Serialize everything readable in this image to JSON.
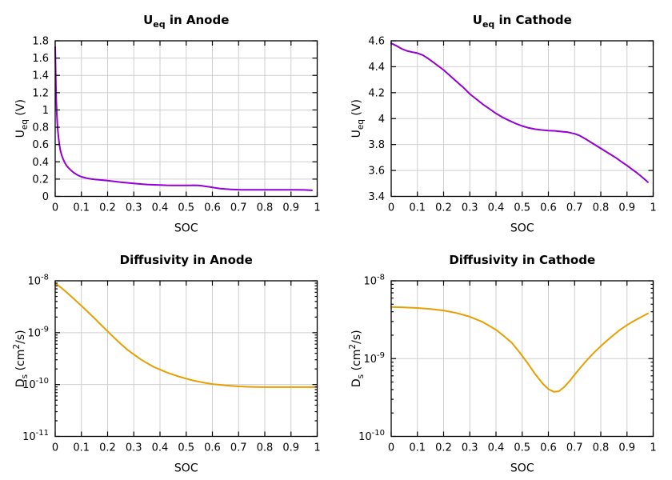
{
  "style": {
    "background": "#ffffff",
    "axis_color": "#000000",
    "grid_color": "#cfcfcf",
    "purple": "#9400d3",
    "orange": "#e69f00"
  },
  "chart_data": [
    {
      "name": "ueq-anode",
      "type": "line",
      "title": [
        {
          "t": "U"
        },
        {
          "t": "eq",
          "s": "sub"
        },
        {
          "t": " in Anode"
        }
      ],
      "xlabel": "SOC",
      "ylabel": [
        {
          "t": "U"
        },
        {
          "t": "eq",
          "s": "sub"
        },
        {
          "t": " (V)"
        }
      ],
      "line_color": "#9400d3",
      "grid": true,
      "legend": "none",
      "x": {
        "min": 0,
        "max": 1,
        "ticks": [
          0,
          0.1,
          0.2,
          0.3,
          0.4,
          0.5,
          0.6,
          0.7,
          0.8,
          0.9,
          1
        ],
        "labels": [
          "0",
          "0.1",
          "0.2",
          "0.3",
          "0.4",
          "0.5",
          "0.6",
          "0.7",
          "0.8",
          "0.9",
          "1"
        ]
      },
      "y": {
        "scale": "linear",
        "min": 0,
        "max": 1.8,
        "ticks": [
          0,
          0.2,
          0.4,
          0.6,
          0.8,
          1,
          1.2,
          1.4,
          1.6,
          1.8
        ],
        "labels": [
          "0",
          "0.2",
          "0.4",
          "0.6",
          "0.8",
          "1",
          "1.2",
          "1.4",
          "1.6",
          "1.8"
        ]
      },
      "points": [
        [
          0,
          1.73
        ],
        [
          0.002,
          1.38
        ],
        [
          0.004,
          1.12
        ],
        [
          0.006,
          0.96
        ],
        [
          0.008,
          0.85
        ],
        [
          0.01,
          0.76
        ],
        [
          0.013,
          0.67
        ],
        [
          0.016,
          0.6
        ],
        [
          0.02,
          0.53
        ],
        [
          0.025,
          0.475
        ],
        [
          0.03,
          0.435
        ],
        [
          0.035,
          0.4
        ],
        [
          0.04,
          0.372
        ],
        [
          0.045,
          0.35
        ],
        [
          0.05,
          0.332
        ],
        [
          0.06,
          0.302
        ],
        [
          0.07,
          0.277
        ],
        [
          0.08,
          0.257
        ],
        [
          0.09,
          0.24
        ],
        [
          0.1,
          0.227
        ],
        [
          0.11,
          0.218
        ],
        [
          0.12,
          0.211
        ],
        [
          0.135,
          0.203
        ],
        [
          0.15,
          0.197
        ],
        [
          0.175,
          0.19
        ],
        [
          0.2,
          0.183
        ],
        [
          0.225,
          0.174
        ],
        [
          0.25,
          0.165
        ],
        [
          0.275,
          0.157
        ],
        [
          0.3,
          0.15
        ],
        [
          0.325,
          0.143
        ],
        [
          0.35,
          0.138
        ],
        [
          0.375,
          0.134
        ],
        [
          0.4,
          0.131
        ],
        [
          0.425,
          0.129
        ],
        [
          0.45,
          0.128
        ],
        [
          0.475,
          0.127
        ],
        [
          0.5,
          0.127
        ],
        [
          0.515,
          0.128
        ],
        [
          0.53,
          0.129
        ],
        [
          0.545,
          0.127
        ],
        [
          0.56,
          0.122
        ],
        [
          0.575,
          0.116
        ],
        [
          0.59,
          0.11
        ],
        [
          0.61,
          0.099
        ],
        [
          0.63,
          0.091
        ],
        [
          0.65,
          0.085
        ],
        [
          0.67,
          0.081
        ],
        [
          0.69,
          0.079
        ],
        [
          0.71,
          0.077
        ],
        [
          0.74,
          0.0765
        ],
        [
          0.77,
          0.076
        ],
        [
          0.8,
          0.076
        ],
        [
          0.83,
          0.0765
        ],
        [
          0.86,
          0.077
        ],
        [
          0.89,
          0.077
        ],
        [
          0.92,
          0.077
        ],
        [
          0.95,
          0.075
        ],
        [
          0.965,
          0.073
        ],
        [
          0.98,
          0.07
        ]
      ]
    },
    {
      "name": "ueq-cathode",
      "type": "line",
      "title": [
        {
          "t": "U"
        },
        {
          "t": "eq",
          "s": "sub"
        },
        {
          "t": " in Cathode"
        }
      ],
      "xlabel": "SOC",
      "ylabel": [
        {
          "t": "U"
        },
        {
          "t": "eq",
          "s": "sub"
        },
        {
          "t": " (V)"
        }
      ],
      "line_color": "#9400d3",
      "grid": true,
      "legend": "none",
      "x": {
        "min": 0,
        "max": 1,
        "ticks": [
          0,
          0.1,
          0.2,
          0.3,
          0.4,
          0.5,
          0.6,
          0.7,
          0.8,
          0.9,
          1
        ],
        "labels": [
          "0",
          "0.1",
          "0.2",
          "0.3",
          "0.4",
          "0.5",
          "0.6",
          "0.7",
          "0.8",
          "0.9",
          "1"
        ]
      },
      "y": {
        "scale": "linear",
        "min": 3.4,
        "max": 4.6,
        "ticks": [
          3.4,
          3.6,
          3.8,
          4,
          4.2,
          4.4,
          4.6
        ],
        "labels": [
          "3.4",
          "3.6",
          "3.8",
          "4",
          "4.2",
          "4.4",
          "4.6"
        ]
      },
      "points": [
        [
          0,
          4.58
        ],
        [
          0.02,
          4.562
        ],
        [
          0.04,
          4.538
        ],
        [
          0.06,
          4.522
        ],
        [
          0.08,
          4.513
        ],
        [
          0.1,
          4.505
        ],
        [
          0.12,
          4.49
        ],
        [
          0.14,
          4.465
        ],
        [
          0.16,
          4.435
        ],
        [
          0.18,
          4.405
        ],
        [
          0.2,
          4.375
        ],
        [
          0.225,
          4.33
        ],
        [
          0.25,
          4.285
        ],
        [
          0.275,
          4.24
        ],
        [
          0.3,
          4.19
        ],
        [
          0.325,
          4.15
        ],
        [
          0.35,
          4.11
        ],
        [
          0.375,
          4.075
        ],
        [
          0.4,
          4.04
        ],
        [
          0.425,
          4.01
        ],
        [
          0.45,
          3.985
        ],
        [
          0.475,
          3.962
        ],
        [
          0.5,
          3.943
        ],
        [
          0.525,
          3.928
        ],
        [
          0.55,
          3.918
        ],
        [
          0.575,
          3.912
        ],
        [
          0.6,
          3.908
        ],
        [
          0.625,
          3.905
        ],
        [
          0.65,
          3.9
        ],
        [
          0.675,
          3.895
        ],
        [
          0.7,
          3.883
        ],
        [
          0.72,
          3.868
        ],
        [
          0.74,
          3.845
        ],
        [
          0.76,
          3.82
        ],
        [
          0.78,
          3.795
        ],
        [
          0.8,
          3.77
        ],
        [
          0.82,
          3.745
        ],
        [
          0.84,
          3.72
        ],
        [
          0.86,
          3.695
        ],
        [
          0.88,
          3.665
        ],
        [
          0.9,
          3.638
        ],
        [
          0.92,
          3.608
        ],
        [
          0.94,
          3.578
        ],
        [
          0.96,
          3.545
        ],
        [
          0.98,
          3.51
        ]
      ]
    },
    {
      "name": "diffusivity-anode",
      "type": "line",
      "title": [
        {
          "t": "Diffusivity in Anode"
        }
      ],
      "xlabel": "SOC",
      "ylabel": [
        {
          "t": "D"
        },
        {
          "t": "s",
          "s": "sub"
        },
        {
          "t": " (cm"
        },
        {
          "t": "2",
          "s": "sup"
        },
        {
          "t": "/s)"
        }
      ],
      "line_color": "#e69f00",
      "grid": true,
      "legend": "none",
      "x": {
        "min": 0,
        "max": 1,
        "ticks": [
          0,
          0.1,
          0.2,
          0.3,
          0.4,
          0.5,
          0.6,
          0.7,
          0.8,
          0.9,
          1
        ],
        "labels": [
          "0",
          "0.1",
          "0.2",
          "0.3",
          "0.4",
          "0.5",
          "0.6",
          "0.7",
          "0.8",
          "0.9",
          "1"
        ]
      },
      "y": {
        "scale": "log",
        "min": 1e-11,
        "max": 1e-08,
        "ticks": [
          1e-11,
          1e-10,
          1e-09,
          1e-08
        ],
        "exp_labels": [
          "-11",
          "-10",
          "-9",
          "-8"
        ]
      },
      "points": [
        [
          0,
          9e-09
        ],
        [
          0.025,
          7.2e-09
        ],
        [
          0.05,
          5.6e-09
        ],
        [
          0.075,
          4.3e-09
        ],
        [
          0.1,
          3.3e-09
        ],
        [
          0.125,
          2.5e-09
        ],
        [
          0.15,
          1.9e-09
        ],
        [
          0.175,
          1.42e-09
        ],
        [
          0.2,
          1.06e-09
        ],
        [
          0.225,
          8e-10
        ],
        [
          0.25,
          6.1e-10
        ],
        [
          0.275,
          4.7e-10
        ],
        [
          0.3,
          3.8e-10
        ],
        [
          0.325,
          3.1e-10
        ],
        [
          0.35,
          2.6e-10
        ],
        [
          0.375,
          2.2e-10
        ],
        [
          0.4,
          1.95e-10
        ],
        [
          0.425,
          1.72e-10
        ],
        [
          0.45,
          1.55e-10
        ],
        [
          0.475,
          1.41e-10
        ],
        [
          0.5,
          1.3e-10
        ],
        [
          0.525,
          1.2e-10
        ],
        [
          0.55,
          1.13e-10
        ],
        [
          0.575,
          1.07e-10
        ],
        [
          0.6,
          1.02e-10
        ],
        [
          0.625,
          9.9e-11
        ],
        [
          0.65,
          9.6e-11
        ],
        [
          0.675,
          9.4e-11
        ],
        [
          0.7,
          9.2e-11
        ],
        [
          0.75,
          9e-11
        ],
        [
          0.8,
          8.9e-11
        ],
        [
          0.85,
          8.9e-11
        ],
        [
          0.9,
          8.9e-11
        ],
        [
          0.95,
          8.9e-11
        ],
        [
          1,
          8.9e-11
        ]
      ]
    },
    {
      "name": "diffusivity-cathode",
      "type": "line",
      "title": [
        {
          "t": "Diffusivity in Cathode"
        }
      ],
      "xlabel": "SOC",
      "ylabel": [
        {
          "t": "D"
        },
        {
          "t": "s",
          "s": "sub"
        },
        {
          "t": " (cm"
        },
        {
          "t": "2",
          "s": "sup"
        },
        {
          "t": "/s)"
        }
      ],
      "line_color": "#e69f00",
      "grid": true,
      "legend": "none",
      "x": {
        "min": 0,
        "max": 1,
        "ticks": [
          0,
          0.1,
          0.2,
          0.3,
          0.4,
          0.5,
          0.6,
          0.7,
          0.8,
          0.9,
          1
        ],
        "labels": [
          "0",
          "0.1",
          "0.2",
          "0.3",
          "0.4",
          "0.5",
          "0.6",
          "0.7",
          "0.8",
          "0.9",
          "1"
        ]
      },
      "y": {
        "scale": "log",
        "min": 1e-10,
        "max": 1e-08,
        "ticks": [
          1e-10,
          1e-09,
          1e-08
        ],
        "exp_labels": [
          "-10",
          "-9",
          "-8"
        ]
      },
      "points": [
        [
          0,
          4.6e-09
        ],
        [
          0.05,
          4.55e-09
        ],
        [
          0.1,
          4.47e-09
        ],
        [
          0.15,
          4.35e-09
        ],
        [
          0.2,
          4.15e-09
        ],
        [
          0.25,
          3.85e-09
        ],
        [
          0.3,
          3.45e-09
        ],
        [
          0.35,
          2.95e-09
        ],
        [
          0.4,
          2.35e-09
        ],
        [
          0.43,
          1.95e-09
        ],
        [
          0.46,
          1.6e-09
        ],
        [
          0.49,
          1.2e-09
        ],
        [
          0.52,
          8.8e-10
        ],
        [
          0.55,
          6.3e-10
        ],
        [
          0.58,
          4.7e-10
        ],
        [
          0.6,
          4.05e-10
        ],
        [
          0.62,
          3.75e-10
        ],
        [
          0.64,
          3.8e-10
        ],
        [
          0.66,
          4.3e-10
        ],
        [
          0.68,
          5.1e-10
        ],
        [
          0.7,
          6.2e-10
        ],
        [
          0.72,
          7.5e-10
        ],
        [
          0.75,
          9.8e-10
        ],
        [
          0.78,
          1.25e-09
        ],
        [
          0.81,
          1.55e-09
        ],
        [
          0.84,
          1.9e-09
        ],
        [
          0.87,
          2.3e-09
        ],
        [
          0.9,
          2.7e-09
        ],
        [
          0.93,
          3.1e-09
        ],
        [
          0.96,
          3.5e-09
        ],
        [
          0.98,
          3.8e-09
        ]
      ]
    }
  ]
}
